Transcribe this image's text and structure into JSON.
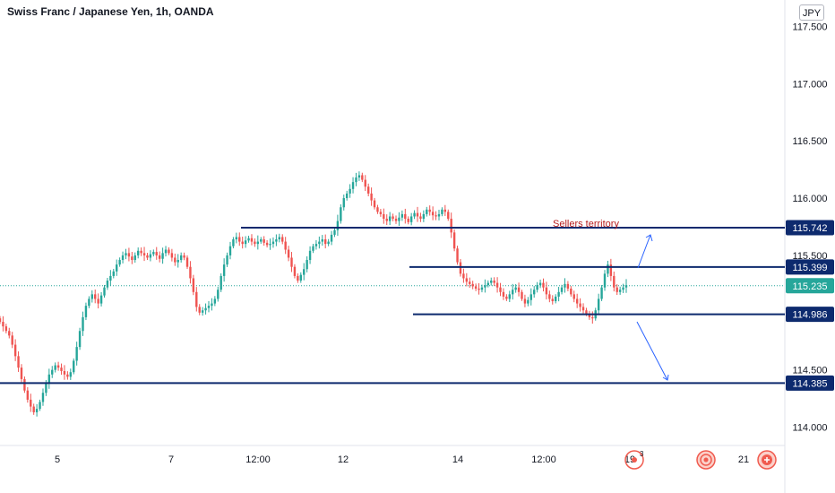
{
  "header": {
    "title": "Swiss Franc / Japanese Yen, 1h, OANDA",
    "currency_button": "JPY"
  },
  "annotation": {
    "text": "Sellers territory",
    "color": "#b71c1c"
  },
  "chart_data": {
    "type": "candlestick",
    "title": "Swiss Franc / Japanese Yen, 1h, OANDA",
    "instrument": "CHFJPY",
    "timeframe": "1h",
    "source": "OANDA",
    "currency": "JPY",
    "ylim": [
      113.84,
      117.73
    ],
    "y_ticks": [
      "117.500",
      "117.000",
      "116.500",
      "116.000",
      "115.500",
      "114.500",
      "114.000"
    ],
    "x_ticks": [
      "5",
      "7",
      "12:00",
      "12",
      "14",
      "12:00",
      "19",
      "21"
    ],
    "current_price": "115.235",
    "current_price_value": 115.235,
    "levels": [
      {
        "label": "115.742",
        "value": 115.742,
        "color": "#0d2a6e"
      },
      {
        "label": "115.399",
        "value": 115.399,
        "color": "#0d2a6e"
      },
      {
        "label": "114.986",
        "value": 114.986,
        "color": "#0d2a6e"
      },
      {
        "label": "114.385",
        "value": 114.385,
        "color": "#0d2a6e"
      }
    ],
    "price_path": [
      114.92,
      114.88,
      114.84,
      114.8,
      114.72,
      114.62,
      114.52,
      114.42,
      114.32,
      114.24,
      114.18,
      114.13,
      114.16,
      114.22,
      114.3,
      114.38,
      114.46,
      114.5,
      114.54,
      114.52,
      114.49,
      114.46,
      114.44,
      114.48,
      114.58,
      114.7,
      114.84,
      114.96,
      115.06,
      115.12,
      115.16,
      115.12,
      115.08,
      115.15,
      115.22,
      115.28,
      115.32,
      115.36,
      115.42,
      115.46,
      115.5,
      115.52,
      115.49,
      115.46,
      115.5,
      115.54,
      115.52,
      115.5,
      115.48,
      115.51,
      115.53,
      115.5,
      115.47,
      115.52,
      115.55,
      115.52,
      115.48,
      115.44,
      115.46,
      115.5,
      115.48,
      115.4,
      115.3,
      115.18,
      115.05,
      115.0,
      115.02,
      115.04,
      115.06,
      115.08,
      115.12,
      115.2,
      115.32,
      115.42,
      115.5,
      115.58,
      115.64,
      115.66,
      115.62,
      115.6,
      115.63,
      115.65,
      115.62,
      115.6,
      115.62,
      115.64,
      115.61,
      115.59,
      115.6,
      115.62,
      115.64,
      115.66,
      115.62,
      115.55,
      115.48,
      115.4,
      115.32,
      115.28,
      115.33,
      115.38,
      115.46,
      115.54,
      115.58,
      115.6,
      115.62,
      115.64,
      115.6,
      115.62,
      115.68,
      115.72,
      115.8,
      115.92,
      116.0,
      116.04,
      116.08,
      116.14,
      116.18,
      116.2,
      116.16,
      116.1,
      116.04,
      115.98,
      115.92,
      115.88,
      115.86,
      115.82,
      115.8,
      115.84,
      115.82,
      115.8,
      115.83,
      115.86,
      115.82,
      115.79,
      115.84,
      115.87,
      115.84,
      115.82,
      115.86,
      115.9,
      115.88,
      115.85,
      115.84,
      115.86,
      115.9,
      115.88,
      115.82,
      115.7,
      115.56,
      115.44,
      115.34,
      115.3,
      115.27,
      115.25,
      115.23,
      115.21,
      115.2,
      115.22,
      115.24,
      115.26,
      115.28,
      115.26,
      115.22,
      115.18,
      115.14,
      115.12,
      115.16,
      115.2,
      115.22,
      115.18,
      115.12,
      115.08,
      115.11,
      115.16,
      115.2,
      115.24,
      115.26,
      115.22,
      115.16,
      115.12,
      115.1,
      115.14,
      115.18,
      115.22,
      115.25,
      115.21,
      115.16,
      115.12,
      115.08,
      115.05,
      115.02,
      114.99,
      114.96,
      114.95,
      115.02,
      115.12,
      115.22,
      115.34,
      115.42,
      115.32,
      115.22,
      115.18,
      115.2,
      115.22,
      115.24
    ]
  }
}
